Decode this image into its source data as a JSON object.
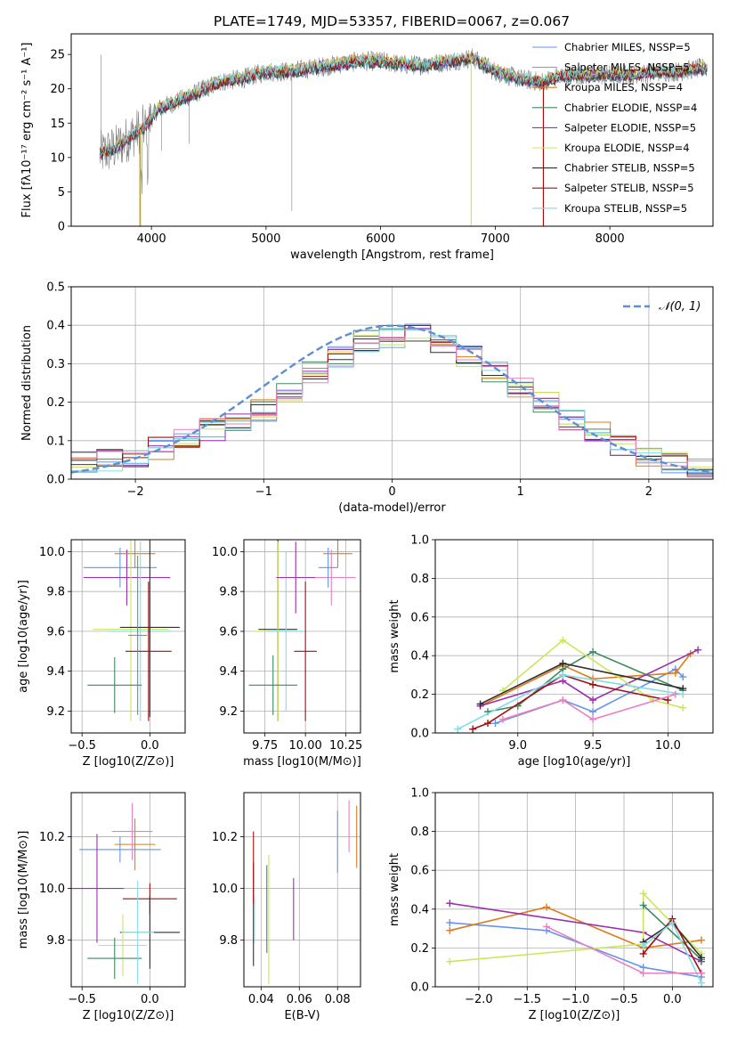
{
  "figure_title": "PLATE=1749, MJD=53357, FIBERID=0067, z=0.067",
  "colors": {
    "chabrier_miles": "#6495ED",
    "salpeter_miles": "#7FA8A8",
    "kroupa_miles": "#E07B1A",
    "chabrier_elodie": "#3E8A5E",
    "salpeter_elodie": "#9B2FAE",
    "kroupa_elodie": "#C8E85A",
    "chabrier_stelib": "#2F2F2F",
    "salpeter_stelib": "#A01010",
    "kroupa_stelib": "#80DCE8",
    "pink": "#E87FC0",
    "gaussian": "#5B8FD9"
  },
  "chart_data": [
    {
      "id": "spectrum",
      "type": "line",
      "xlabel": "wavelength [Angstrom, rest frame]",
      "ylabel": "Flux [fλ10⁻¹⁷ erg cm⁻² s⁻¹ A⁻¹]",
      "xlim": [
        3300,
        8900
      ],
      "ylim": [
        0,
        28
      ],
      "xticks": [
        4000,
        5000,
        6000,
        7000,
        8000
      ],
      "yticks": [
        0,
        5,
        10,
        15,
        20,
        25
      ],
      "legend": "top-right",
      "series": [
        {
          "name": "Chabrier MILES, N_SSP=5",
          "color": "#6495ED"
        },
        {
          "name": "Salpeter MILES, N_SSP=5",
          "color": "#7FA8A8"
        },
        {
          "name": "Kroupa MILES, N_SSP=4",
          "color": "#E07B1A"
        },
        {
          "name": "Chabrier ELODIE, N_SSP=4",
          "color": "#3E8A5E"
        },
        {
          "name": "Salpeter ELODIE, N_SSP=5",
          "color": "#9B2FAE"
        },
        {
          "name": "Kroupa ELODIE, N_SSP=4",
          "color": "#C8E85A"
        },
        {
          "name": "Chabrier STELIB, N_SSP=5",
          "color": "#2F2F2F"
        },
        {
          "name": "Salpeter STELIB, N_SSP=5",
          "color": "#A01010"
        },
        {
          "name": "Kroupa STELIB, N_SSP=5",
          "color": "#80DCE8"
        }
      ],
      "data_envelope": {
        "x": [
          3550,
          3700,
          3850,
          3950,
          4050,
          4200,
          4400,
          4600,
          4800,
          5000,
          5200,
          5400,
          5600,
          5800,
          6000,
          6200,
          6400,
          6600,
          6800,
          7000,
          7200,
          7400,
          7600,
          7800,
          8000,
          8200,
          8400,
          8600,
          8800
        ],
        "y": [
          10.5,
          11.5,
          13.5,
          14.5,
          17,
          18,
          19.5,
          21,
          21.5,
          22.5,
          22.5,
          23,
          23.5,
          24,
          24,
          23.5,
          23.5,
          24,
          24.5,
          22.5,
          21.5,
          21,
          22,
          22,
          22,
          22,
          22.5,
          22.5,
          23
        ]
      }
    },
    {
      "id": "residuals",
      "type": "step",
      "xlabel": "(data-model)/error",
      "ylabel": "Normed distribution",
      "xlim": [
        -2.5,
        2.5
      ],
      "ylim": [
        0,
        0.5
      ],
      "xticks": [
        -2,
        -1,
        0,
        1,
        2
      ],
      "yticks": [
        0.0,
        0.1,
        0.2,
        0.3,
        0.4,
        0.5
      ],
      "legend": "top-right",
      "legend_label": "𝒩(0, 1)",
      "gaussian": {
        "mean": 0,
        "sigma": 1
      },
      "bin_edges": [
        -2.5,
        -2.3,
        -2.1,
        -1.9,
        -1.7,
        -1.5,
        -1.3,
        -1.1,
        -0.9,
        -0.7,
        -0.5,
        -0.3,
        -0.1,
        0.1,
        0.3,
        0.5,
        0.7,
        0.9,
        1.1,
        1.3,
        1.5,
        1.7,
        1.9,
        2.1,
        2.3,
        2.5
      ],
      "reference_hist": [
        0.045,
        0.05,
        0.06,
        0.08,
        0.11,
        0.13,
        0.15,
        0.18,
        0.23,
        0.28,
        0.32,
        0.36,
        0.37,
        0.38,
        0.35,
        0.32,
        0.28,
        0.24,
        0.2,
        0.15,
        0.12,
        0.09,
        0.06,
        0.045,
        0.035
      ]
    },
    {
      "id": "age-vs-Z",
      "type": "errorbar",
      "xlabel": "Z [log10(Z/Z⊙)]",
      "ylabel": "age  [log10(age/yr)]",
      "xlim": [
        -0.58,
        0.26
      ],
      "ylim": [
        9.09,
        10.06
      ],
      "xticks": [
        -0.5,
        0.0
      ],
      "yticks": [
        9.2,
        9.4,
        9.6,
        9.8,
        10.0
      ],
      "points": [
        {
          "x": -0.22,
          "xerr": 0.27,
          "y": 9.92,
          "yerr": 0.1,
          "color": "#6495ED"
        },
        {
          "x": -0.17,
          "xerr": 0.32,
          "y": 9.87,
          "yerr": 0.14,
          "color": "#9B2FAE"
        },
        {
          "x": -0.11,
          "xerr": 0.15,
          "y": 9.99,
          "yerr": 0.07,
          "color": "#E07B1A"
        },
        {
          "x": -0.14,
          "xerr": 0.28,
          "y": 9.61,
          "yerr": 0.46,
          "color": "#C8E85A"
        },
        {
          "x": -0.07,
          "xerr": 0.23,
          "y": 9.6,
          "yerr": 0.45,
          "color": "#80DCE8"
        },
        {
          "x": 0.0,
          "xerr": 0.22,
          "y": 9.62,
          "yerr": 0.45,
          "color": "#2F2F2F"
        },
        {
          "x": -0.01,
          "xerr": 0.17,
          "y": 9.5,
          "yerr": 0.35,
          "color": "#A01010"
        },
        {
          "x": -0.26,
          "xerr": 0.2,
          "y": 9.33,
          "yerr": 0.14,
          "color": "#3E8A5E"
        },
        {
          "x": -0.09,
          "xerr": 0.07,
          "y": 9.58,
          "yerr": 0.4,
          "color": "#6E8C8C"
        }
      ]
    },
    {
      "id": "age-vs-mass",
      "type": "errorbar",
      "xlabel": "mass [log10(M/M⊙)]",
      "ylabel": "",
      "xlim": [
        9.62,
        10.34
      ],
      "ylim": [
        9.09,
        10.06
      ],
      "xticks": [
        9.75,
        10.0,
        10.25
      ],
      "yticks": [
        9.2,
        9.4,
        9.6,
        9.8,
        10.0
      ],
      "points": [
        {
          "x": 10.2,
          "xerr": 0.09,
          "y": 9.99,
          "yerr": 0.07,
          "color": "#E07B1A"
        },
        {
          "x": 10.16,
          "xerr": 0.15,
          "y": 9.87,
          "yerr": 0.14,
          "color": "#E87FC0"
        },
        {
          "x": 10.14,
          "xerr": 0.06,
          "y": 9.92,
          "yerr": 0.1,
          "color": "#6495ED"
        },
        {
          "x": 9.83,
          "xerr": 0.12,
          "y": 9.61,
          "yerr": 0.46,
          "color": "#2F2F2F"
        },
        {
          "x": 9.83,
          "xerr": 0.15,
          "y": 9.6,
          "yerr": 0.45,
          "color": "#C8E85A"
        },
        {
          "x": 9.88,
          "xerr": 0.12,
          "y": 9.6,
          "yerr": 0.4,
          "color": "#80DCE8"
        },
        {
          "x": 10.0,
          "xerr": 0.07,
          "y": 9.5,
          "yerr": 0.35,
          "color": "#A01010"
        },
        {
          "x": 9.8,
          "xerr": 0.15,
          "y": 9.33,
          "yerr": 0.15,
          "color": "#3E8A5E"
        },
        {
          "x": 9.94,
          "xerr": 0.12,
          "y": 9.87,
          "yerr": 0.18,
          "color": "#9B2FAE"
        }
      ]
    },
    {
      "id": "massweight-vs-age",
      "type": "line",
      "xlabel": "age  [log10(age/yr)]",
      "ylabel": "mass weight",
      "xlim": [
        8.45,
        10.3
      ],
      "ylim": [
        0,
        1
      ],
      "xticks": [
        9.0,
        9.5,
        10.0
      ],
      "yticks": [
        0.0,
        0.2,
        0.4,
        0.6,
        0.8,
        1.0
      ],
      "series": [
        {
          "color": "#6495ED",
          "x": [
            8.85,
            9.3,
            9.5,
            10.05,
            10.1
          ],
          "y": [
            0.05,
            0.17,
            0.11,
            0.33,
            0.29
          ]
        },
        {
          "color": "#E07B1A",
          "x": [
            8.75,
            9.3,
            9.5,
            10.05,
            10.15
          ],
          "y": [
            0.14,
            0.35,
            0.28,
            0.31,
            0.41
          ]
        },
        {
          "color": "#3E8A5E",
          "x": [
            8.8,
            9.0,
            9.3,
            9.5,
            10.1
          ],
          "y": [
            0.11,
            0.14,
            0.33,
            0.42,
            0.22
          ]
        },
        {
          "color": "#9B2FAE",
          "x": [
            8.75,
            9.3,
            9.5,
            10.2
          ],
          "y": [
            0.14,
            0.27,
            0.17,
            0.43
          ]
        },
        {
          "color": "#C8E85A",
          "x": [
            8.9,
            9.3,
            9.9,
            10.1
          ],
          "y": [
            0.22,
            0.48,
            0.17,
            0.13
          ]
        },
        {
          "color": "#2F2F2F",
          "x": [
            8.75,
            9.3,
            10.1
          ],
          "y": [
            0.15,
            0.36,
            0.23
          ]
        },
        {
          "color": "#A01010",
          "x": [
            8.7,
            8.8,
            9.3,
            9.5,
            10.0
          ],
          "y": [
            0.02,
            0.05,
            0.3,
            0.25,
            0.17
          ]
        },
        {
          "color": "#80DCE8",
          "x": [
            8.6,
            9.3,
            10.1
          ],
          "y": [
            0.02,
            0.3,
            0.2
          ]
        },
        {
          "color": "#E87FC0",
          "x": [
            8.9,
            9.3,
            9.5,
            10.05
          ],
          "y": [
            0.07,
            0.17,
            0.07,
            0.2
          ]
        }
      ]
    },
    {
      "id": "mass-vs-Z",
      "type": "errorbar",
      "xlabel": "Z [log10(Z/Z⊙)]",
      "ylabel": "mass [log10(M/M⊙)]",
      "xlim": [
        -0.58,
        0.26
      ],
      "ylim": [
        9.62,
        10.37
      ],
      "xticks": [
        -0.5,
        0.0
      ],
      "yticks": [
        9.8,
        10.0,
        10.2
      ],
      "points": [
        {
          "x": -0.22,
          "xerr": 0.3,
          "y": 10.15,
          "yerr": 0.05,
          "color": "#6495ED"
        },
        {
          "x": -0.11,
          "xerr": 0.15,
          "y": 10.17,
          "yerr": 0.1,
          "color": "#E07B1A"
        },
        {
          "x": -0.13,
          "xerr": 0.15,
          "y": 10.22,
          "yerr": 0.11,
          "color": "#E87FC0"
        },
        {
          "x": -0.39,
          "xerr": 0.2,
          "y": 10.0,
          "yerr": 0.21,
          "color": "#9B2FAE"
        },
        {
          "x": -0.2,
          "xerr": 0.18,
          "y": 9.78,
          "yerr": 0.12,
          "color": "#C8E85A"
        },
        {
          "x": -0.26,
          "xerr": 0.2,
          "y": 9.73,
          "yerr": 0.08,
          "color": "#3E8A5E"
        },
        {
          "x": 0.0,
          "xerr": 0.2,
          "y": 9.96,
          "yerr": 0.06,
          "color": "#A01010"
        },
        {
          "x": 0.0,
          "xerr": 0.22,
          "y": 9.83,
          "yerr": 0.14,
          "color": "#2F2F2F"
        },
        {
          "x": -0.09,
          "xerr": 0.12,
          "y": 9.83,
          "yerr": 0.2,
          "color": "#80DCE8"
        }
      ]
    },
    {
      "id": "mass-vs-EBV",
      "type": "errorbar",
      "xlabel": "E(B-V)",
      "ylabel": "",
      "xlim": [
        0.031,
        0.092
      ],
      "ylim": [
        9.62,
        10.37
      ],
      "xticks": [
        0.04,
        0.06,
        0.08
      ],
      "yticks": [
        9.8,
        10.0,
        10.2
      ],
      "points": [
        {
          "x": 0.036,
          "yerr": 0.2,
          "y": 9.9,
          "color": "#2F2F2F"
        },
        {
          "x": 0.036,
          "yerr": 0.14,
          "y": 10.08,
          "color": "#A01010"
        },
        {
          "x": 0.0365,
          "yerr": 0.09,
          "y": 9.88,
          "color": "#80DCE8"
        },
        {
          "x": 0.043,
          "yerr": 0.17,
          "y": 9.92,
          "color": "#3E8A5E"
        },
        {
          "x": 0.044,
          "yerr": 0.25,
          "y": 9.88,
          "color": "#C8E85A"
        },
        {
          "x": 0.057,
          "yerr": 0.12,
          "y": 9.92,
          "color": "#9B2FAE"
        },
        {
          "x": 0.08,
          "yerr": 0.12,
          "y": 10.18,
          "color": "#6495ED"
        },
        {
          "x": 0.086,
          "yerr": 0.1,
          "y": 10.24,
          "color": "#E87FC0"
        },
        {
          "x": 0.09,
          "yerr": 0.12,
          "y": 10.2,
          "color": "#E07B1A"
        }
      ]
    },
    {
      "id": "massweight-vs-Z",
      "type": "line",
      "xlabel": "Z [log10(Z/Z⊙)]",
      "ylabel": "mass weight",
      "xlim": [
        -2.45,
        0.42
      ],
      "ylim": [
        0,
        1
      ],
      "xticks": [
        -2.0,
        -1.5,
        -1.0,
        -0.5,
        0.0
      ],
      "yticks": [
        0.0,
        0.2,
        0.4,
        0.6,
        0.8,
        1.0
      ],
      "series": [
        {
          "color": "#6495ED",
          "x": [
            -2.3,
            -1.3,
            -0.3,
            0.3
          ],
          "y": [
            0.33,
            0.29,
            0.1,
            0.05
          ]
        },
        {
          "color": "#E07B1A",
          "x": [
            -2.3,
            -1.3,
            -0.3,
            0.3
          ],
          "y": [
            0.29,
            0.41,
            0.2,
            0.24
          ]
        },
        {
          "color": "#9B2FAE",
          "x": [
            -2.3,
            -0.3,
            0.3
          ],
          "y": [
            0.43,
            0.28,
            0.13
          ]
        },
        {
          "color": "#C8E85A",
          "x": [
            -2.3,
            -0.3,
            -0.3,
            0.3
          ],
          "y": [
            0.13,
            0.22,
            0.48,
            0.17
          ]
        },
        {
          "color": "#3E8A5E",
          "x": [
            -0.3,
            0.3
          ],
          "y": [
            0.42,
            0.14
          ]
        },
        {
          "color": "#2F2F2F",
          "x": [
            -0.3,
            0.0,
            0.3
          ],
          "y": [
            0.23,
            0.33,
            0.15
          ]
        },
        {
          "color": "#A01010",
          "x": [
            -0.3,
            0.0,
            0.3
          ],
          "y": [
            0.17,
            0.35,
            0.07
          ]
        },
        {
          "color": "#80DCE8",
          "x": [
            -0.3,
            0.0,
            0.3
          ],
          "y": [
            0.21,
            0.33,
            0.02
          ]
        },
        {
          "color": "#E87FC0",
          "x": [
            -1.3,
            -0.3,
            0.3
          ],
          "y": [
            0.31,
            0.07,
            0.07
          ]
        }
      ]
    }
  ]
}
